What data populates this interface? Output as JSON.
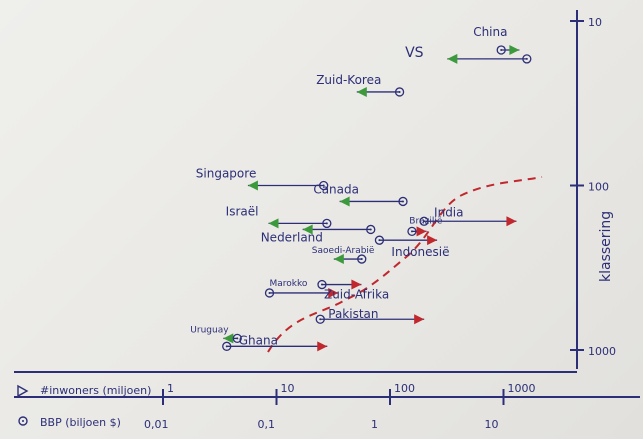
{
  "chart_data": {
    "type": "scatter",
    "y_axis": {
      "label": "klassering",
      "scale": "log",
      "ticks": [
        10,
        100,
        1000
      ],
      "tick_labels": [
        "10",
        "100",
        "1000"
      ],
      "direction": "top-to-bottom"
    },
    "x_axes": [
      {
        "legend": "#inwoners (miljoen)",
        "marker": "triangle",
        "scale": "log",
        "ticks": [
          1,
          10,
          100,
          1000
        ],
        "tick_labels": [
          "1",
          "10",
          "100",
          "1000"
        ]
      },
      {
        "legend": "BBP (biljoen $)",
        "marker": "circle",
        "scale": "log",
        "ticks": [
          0.01,
          0.1,
          1,
          10
        ],
        "tick_labels": [
          "0,01",
          "0,1",
          "1",
          "10"
        ]
      }
    ],
    "colors": {
      "ink": "#2c2f78",
      "triangle_green": "#3c9a3c",
      "triangle_red": "#c0282e",
      "dashed_curve": "#c0282e"
    },
    "countries": [
      {
        "name": "China",
        "rank": 15,
        "population": 1380,
        "gdp": 11.0,
        "triangle_color": "green"
      },
      {
        "name": "VS",
        "rank": 17,
        "population": 320,
        "gdp": 18.5,
        "triangle_color": "green"
      },
      {
        "name": "Zuid-Korea",
        "rank": 27,
        "population": 51,
        "gdp": 1.4,
        "triangle_color": "green"
      },
      {
        "name": "Singapore",
        "rank": 100,
        "population": 5.6,
        "gdp": 0.3,
        "triangle_color": "green"
      },
      {
        "name": "Canada",
        "rank": 125,
        "population": 36,
        "gdp": 1.5,
        "triangle_color": "green"
      },
      {
        "name": "Israël",
        "rank": 170,
        "population": 8.5,
        "gdp": 0.32,
        "triangle_color": "green"
      },
      {
        "name": "Nederland",
        "rank": 185,
        "population": 17,
        "gdp": 0.78,
        "triangle_color": "green"
      },
      {
        "name": "India",
        "rank": 165,
        "population": 1300,
        "gdp": 2.3,
        "triangle_color": "red"
      },
      {
        "name": "Brazilië",
        "rank": 190,
        "population": 210,
        "gdp": 1.8,
        "triangle_color": "red"
      },
      {
        "name": "Indonesië",
        "rank": 215,
        "population": 260,
        "gdp": 0.93,
        "triangle_color": "red"
      },
      {
        "name": "Saoedi-Arabië",
        "rank": 280,
        "population": 32,
        "gdp": 0.65,
        "triangle_color": "green"
      },
      {
        "name": "Marokko",
        "rank": 450,
        "population": 35,
        "gdp": 0.1,
        "triangle_color": "red"
      },
      {
        "name": "Zuid-Afrika",
        "rank": 400,
        "population": 56,
        "gdp": 0.29,
        "triangle_color": "red"
      },
      {
        "name": "Pakistan",
        "rank": 650,
        "population": 200,
        "gdp": 0.28,
        "triangle_color": "red"
      },
      {
        "name": "Uruguay",
        "rank": 850,
        "population": 3.4,
        "gdp": 0.052,
        "triangle_color": "green"
      },
      {
        "name": "Ghana",
        "rank": 950,
        "population": 28,
        "gdp": 0.042,
        "triangle_color": "red"
      }
    ]
  }
}
